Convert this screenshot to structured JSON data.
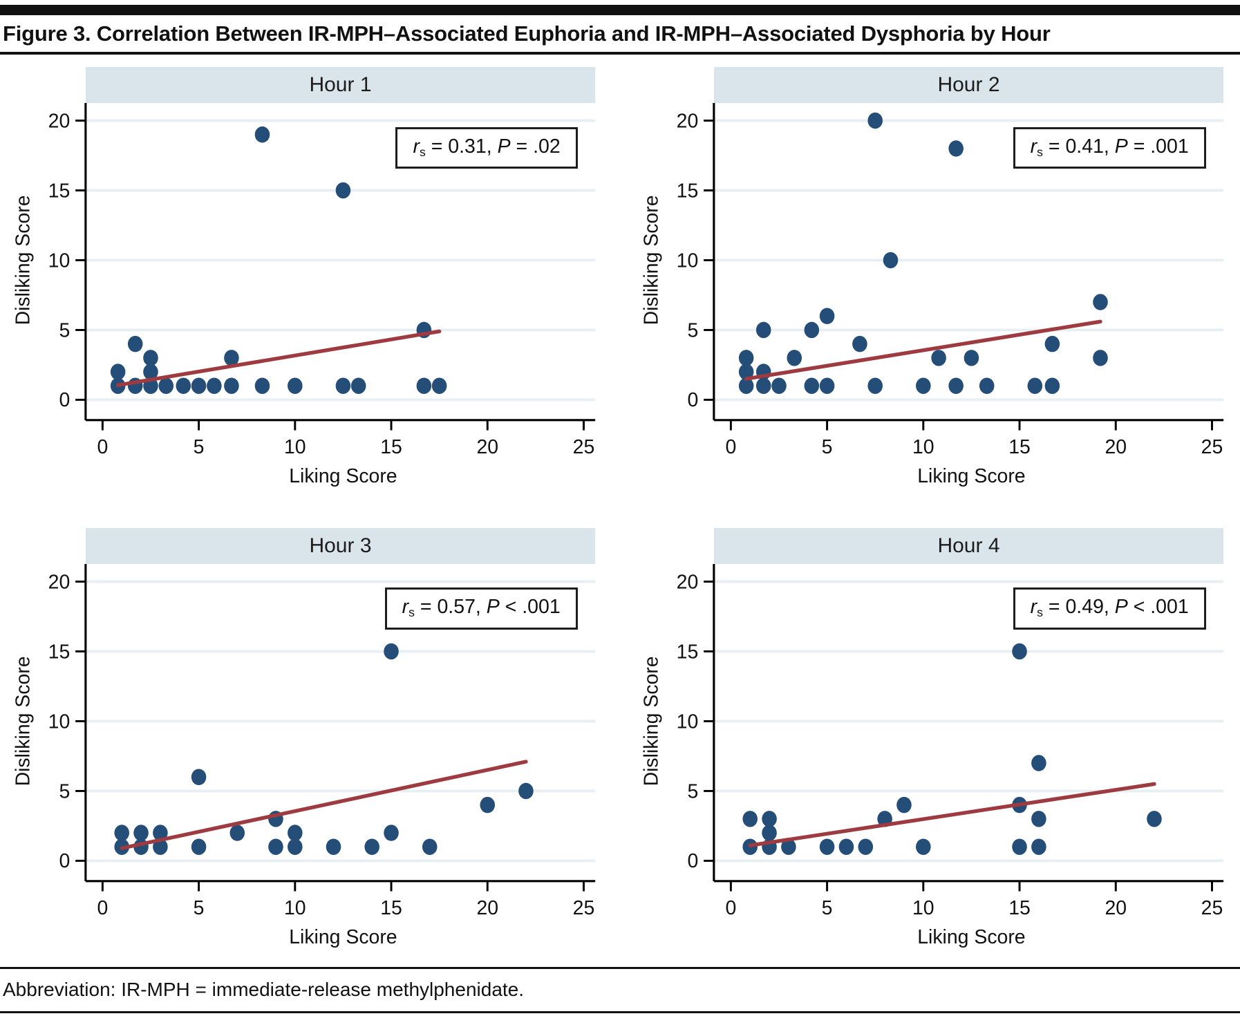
{
  "figure": {
    "title": "Figure 3. Correlation Between IR-MPH–Associated Euphoria and IR-MPH–Associated Dysphoria by Hour",
    "footnote": "Abbreviation: IR-MPH = immediate-release methylphenidate."
  },
  "colors": {
    "dot": "#244e78",
    "trend": "#9d3b40",
    "header_band": "#d9e4eb",
    "gridline": "#e7eff3",
    "axis": "#000000"
  },
  "chart_data": [
    {
      "type": "scatter",
      "title": "Hour 1",
      "xlabel": "Liking Score",
      "ylabel": "Disliking Score",
      "xticks": [
        0,
        5,
        10,
        15,
        20,
        25
      ],
      "yticks": [
        0,
        5,
        10,
        15,
        20
      ],
      "xlim": [
        -0.9,
        25.9
      ],
      "ylim": [
        -1.5,
        21.3
      ],
      "grid": "horizontal gridlines at y ticks",
      "legend": "none",
      "annotation": {
        "r_symbol": "r",
        "r_subscript": "s",
        "r_relation": " = ",
        "r_value": "0.31",
        "separator": ", ",
        "p_symbol": "P",
        "p_relation": " = ",
        "p_value": ".02"
      },
      "points": [
        [
          0.8,
          1
        ],
        [
          0.8,
          2
        ],
        [
          1.7,
          1
        ],
        [
          1.7,
          4
        ],
        [
          2.5,
          1
        ],
        [
          2.5,
          2
        ],
        [
          2.5,
          3
        ],
        [
          3.3,
          1
        ],
        [
          4.2,
          1
        ],
        [
          5,
          1
        ],
        [
          5.8,
          1
        ],
        [
          6.7,
          1
        ],
        [
          6.7,
          3
        ],
        [
          8.3,
          1
        ],
        [
          8.3,
          19
        ],
        [
          10,
          1
        ],
        [
          12.5,
          1
        ],
        [
          12.5,
          15
        ],
        [
          13.3,
          1
        ],
        [
          16.7,
          1
        ],
        [
          16.7,
          5
        ],
        [
          17.5,
          1
        ]
      ],
      "trend_line": {
        "x1": 0.8,
        "y1": 1.05,
        "x2": 17.5,
        "y2": 4.9
      }
    },
    {
      "type": "scatter",
      "title": "Hour 2",
      "xlabel": "Liking Score",
      "ylabel": "Disliking Score",
      "xticks": [
        0,
        5,
        10,
        15,
        20,
        25
      ],
      "yticks": [
        0,
        5,
        10,
        15,
        20
      ],
      "xlim": [
        -0.9,
        25.9
      ],
      "ylim": [
        -1.5,
        21.3
      ],
      "grid": "horizontal gridlines at y ticks",
      "legend": "none",
      "annotation": {
        "r_symbol": "r",
        "r_subscript": "s",
        "r_relation": " = ",
        "r_value": "0.41",
        "separator": ", ",
        "p_symbol": "P",
        "p_relation": " = ",
        "p_value": ".001"
      },
      "points": [
        [
          0.8,
          1
        ],
        [
          0.8,
          2
        ],
        [
          0.8,
          3
        ],
        [
          1.7,
          1
        ],
        [
          1.7,
          2
        ],
        [
          1.7,
          5
        ],
        [
          2.5,
          1
        ],
        [
          3.3,
          3
        ],
        [
          4.2,
          1
        ],
        [
          4.2,
          5
        ],
        [
          5,
          1
        ],
        [
          5,
          6
        ],
        [
          6.7,
          4
        ],
        [
          7.5,
          1
        ],
        [
          7.5,
          20
        ],
        [
          8.3,
          10
        ],
        [
          10,
          1
        ],
        [
          10.8,
          3
        ],
        [
          11.7,
          1
        ],
        [
          11.7,
          18
        ],
        [
          12.5,
          3
        ],
        [
          13.3,
          1
        ],
        [
          15.8,
          1
        ],
        [
          16.7,
          1
        ],
        [
          16.7,
          4
        ],
        [
          19.2,
          3
        ],
        [
          19.2,
          7
        ]
      ],
      "trend_line": {
        "x1": 0.8,
        "y1": 1.5,
        "x2": 19.2,
        "y2": 5.6
      }
    },
    {
      "type": "scatter",
      "title": "Hour 3",
      "xlabel": "Liking Score",
      "ylabel": "Disliking Score",
      "xticks": [
        0,
        5,
        10,
        15,
        20,
        25
      ],
      "yticks": [
        0,
        5,
        10,
        15,
        20
      ],
      "xlim": [
        -0.9,
        25.9
      ],
      "ylim": [
        -1.5,
        21.3
      ],
      "grid": "horizontal gridlines at y ticks",
      "legend": "none",
      "annotation": {
        "r_symbol": "r",
        "r_subscript": "s",
        "r_relation": " = ",
        "r_value": "0.57",
        "separator": ", ",
        "p_symbol": "P",
        "p_relation": " < ",
        "p_value": ".001"
      },
      "points": [
        [
          1,
          1
        ],
        [
          1,
          2
        ],
        [
          2,
          1
        ],
        [
          2,
          2
        ],
        [
          3,
          1
        ],
        [
          3,
          2
        ],
        [
          5,
          1
        ],
        [
          5,
          6
        ],
        [
          7,
          2
        ],
        [
          9,
          1
        ],
        [
          9,
          3
        ],
        [
          10,
          1
        ],
        [
          10,
          2
        ],
        [
          12,
          1
        ],
        [
          14,
          1
        ],
        [
          15,
          2
        ],
        [
          15,
          15
        ],
        [
          17,
          1
        ],
        [
          20,
          4
        ],
        [
          22,
          5
        ]
      ],
      "trend_line": {
        "x1": 1,
        "y1": 0.9,
        "x2": 22,
        "y2": 7.1
      }
    },
    {
      "type": "scatter",
      "title": "Hour 4",
      "xlabel": "Liking Score",
      "ylabel": "Disliking Score",
      "xticks": [
        0,
        5,
        10,
        15,
        20,
        25
      ],
      "yticks": [
        0,
        5,
        10,
        15,
        20
      ],
      "xlim": [
        -0.9,
        25.9
      ],
      "ylim": [
        -1.5,
        21.3
      ],
      "grid": "horizontal gridlines at y ticks",
      "legend": "none",
      "annotation": {
        "r_symbol": "r",
        "r_subscript": "s",
        "r_relation": " = ",
        "r_value": "0.49",
        "separator": ", ",
        "p_symbol": "P",
        "p_relation": " < ",
        "p_value": ".001"
      },
      "points": [
        [
          1,
          1
        ],
        [
          1,
          3
        ],
        [
          2,
          1
        ],
        [
          2,
          2
        ],
        [
          2,
          3
        ],
        [
          3,
          1
        ],
        [
          5,
          1
        ],
        [
          6,
          1
        ],
        [
          7,
          1
        ],
        [
          8,
          3
        ],
        [
          9,
          4
        ],
        [
          10,
          1
        ],
        [
          15,
          1
        ],
        [
          15,
          4
        ],
        [
          15,
          15
        ],
        [
          16,
          1
        ],
        [
          16,
          3
        ],
        [
          16,
          7
        ],
        [
          22,
          3
        ]
      ],
      "trend_line": {
        "x1": 1,
        "y1": 1.1,
        "x2": 22,
        "y2": 5.5
      }
    }
  ]
}
